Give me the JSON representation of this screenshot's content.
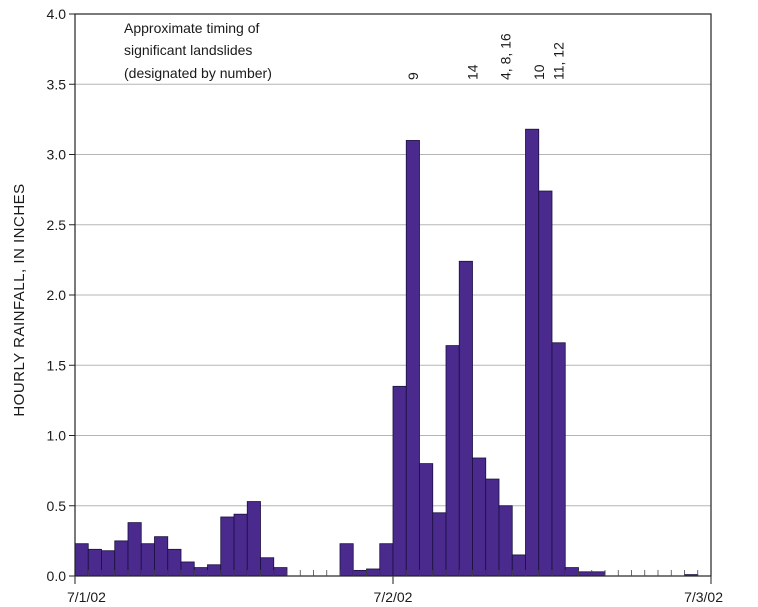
{
  "chart_data": {
    "type": "bar",
    "ylabel": "HOURLY RAINFALL, IN INCHES",
    "xlabel": "",
    "ylim": [
      0,
      4.0
    ],
    "y_ticks": [
      "0.0",
      "0.5",
      "1.0",
      "1.5",
      "2.0",
      "2.5",
      "3.0",
      "3.5",
      "4.0"
    ],
    "y_tick_values": [
      0,
      0.5,
      1.0,
      1.5,
      2.0,
      2.5,
      3.0,
      3.5,
      4.0
    ],
    "x_range_hours": [
      0,
      48
    ],
    "x_tick_labels": [
      {
        "label": "7/1/02",
        "hour": 0
      },
      {
        "label": "7/2/02",
        "hour": 24
      },
      {
        "label": "7/3/02",
        "hour": 48
      }
    ],
    "grid": "horizontal",
    "bar_color": "#4a2a8c",
    "hourly_values": [
      0.23,
      0.19,
      0.18,
      0.25,
      0.38,
      0.23,
      0.28,
      0.19,
      0.1,
      0.06,
      0.08,
      0.42,
      0.44,
      0.53,
      0.13,
      0.06,
      0,
      0,
      0,
      0,
      0.23,
      0.04,
      0.05,
      0.23,
      1.35,
      3.1,
      0.8,
      0.45,
      1.64,
      2.24,
      0.84,
      0.69,
      0.5,
      0.15,
      3.18,
      2.74,
      1.66,
      0.06,
      0.03,
      0.03,
      0,
      0,
      0,
      0,
      0,
      0,
      0.01,
      0
    ],
    "annotation_title": [
      "Approximate timing of",
      "significant landslides",
      "(designated by number)"
    ],
    "landslide_labels": [
      {
        "label": "9",
        "hour": 25.5
      },
      {
        "label": "14",
        "hour": 30.0
      },
      {
        "label": "4, 8, 16",
        "hour": 32.5
      },
      {
        "label": "10",
        "hour": 35.0
      },
      {
        "label": "11, 12",
        "hour": 36.5
      }
    ]
  }
}
